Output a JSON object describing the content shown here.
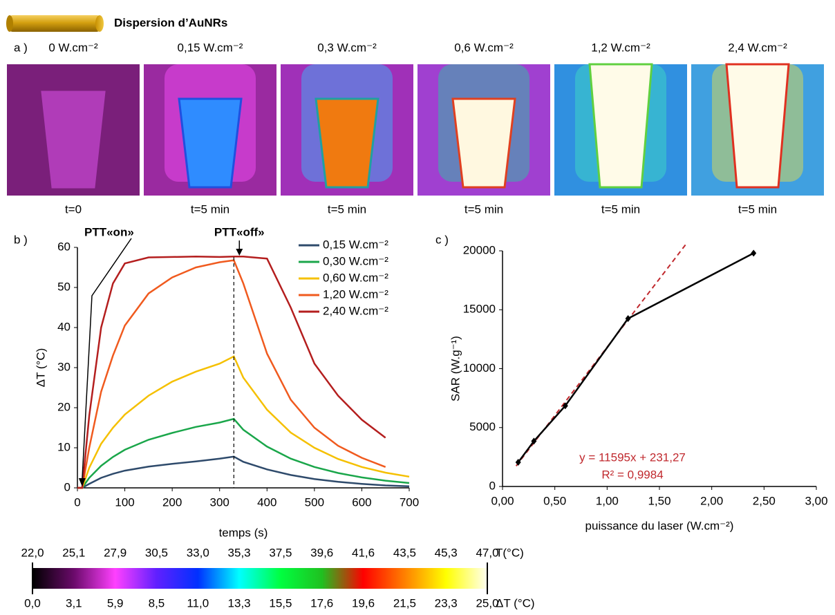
{
  "header": {
    "title": "Dispersion d’AuNRs"
  },
  "panel_a": {
    "label": "a )",
    "images": [
      {
        "power": "0 W.cm⁻²",
        "time": "t=0"
      },
      {
        "power": "0,15 W.cm⁻²",
        "time": "t=5 min"
      },
      {
        "power": "0,3 W.cm⁻²",
        "time": "t=5 min"
      },
      {
        "power": "0,6 W.cm⁻²",
        "time": "t=5 min"
      },
      {
        "power": "1,2 W.cm⁻²",
        "time": "t=5 min"
      },
      {
        "power": "2,4 W.cm⁻²",
        "time": "t=5 min"
      }
    ]
  },
  "chart_data": [
    {
      "type": "line",
      "panel_label": "b )",
      "xlabel": "temps (s)",
      "ylabel": "ΔT (°C)",
      "xlim": [
        0,
        700
      ],
      "ylim": [
        0,
        60
      ],
      "xticks": [
        0,
        100,
        200,
        300,
        400,
        500,
        600,
        700
      ],
      "yticks": [
        0,
        10,
        20,
        30,
        40,
        50,
        60
      ],
      "x": [
        0,
        10,
        25,
        50,
        75,
        100,
        150,
        200,
        250,
        300,
        330,
        350,
        400,
        450,
        500,
        550,
        600,
        650,
        700
      ],
      "series": [
        {
          "name": "0,15 W.cm⁻²",
          "color": "#2e4a6b",
          "values": [
            0,
            0,
            1,
            2.5,
            3.5,
            4.3,
            5.3,
            6,
            6.6,
            7.3,
            7.8,
            6.5,
            4.6,
            3.2,
            2.2,
            1.5,
            1,
            0.6,
            0.4
          ]
        },
        {
          "name": "0,30 W.cm⁻²",
          "color": "#1aa64a",
          "values": [
            0,
            0,
            2.5,
            5.5,
            7.7,
            9.5,
            12,
            13.7,
            15.2,
            16.3,
            17.2,
            14.5,
            10.3,
            7.3,
            5.2,
            3.7,
            2.6,
            1.8,
            1.2
          ]
        },
        {
          "name": "0,60 W.cm⁻²",
          "color": "#f5c000",
          "values": [
            0,
            0,
            5,
            11,
            15,
            18.3,
            23,
            26.5,
            29,
            31,
            32.8,
            27.5,
            19.5,
            13.8,
            10,
            7.2,
            5.2,
            3.8,
            2.8
          ]
        },
        {
          "name": "1,20 W.cm⁻²",
          "color": "#f05a1e",
          "values": [
            0,
            0,
            10,
            24,
            33,
            40.5,
            48.5,
            52.5,
            55,
            56.3,
            56.8,
            51,
            33.5,
            22,
            15,
            10.5,
            7.5,
            5.2,
            null
          ]
        },
        {
          "name": "2,40 W.cm⁻²",
          "color": "#b41e1e",
          "values": [
            0,
            0,
            18,
            40,
            51,
            56,
            57.5,
            57.6,
            57.7,
            57.6,
            57.7,
            57.7,
            57.2,
            45,
            31,
            23,
            17,
            12.5,
            null
          ]
        }
      ],
      "annotations": [
        {
          "text": "PTT«on»",
          "x": 10
        },
        {
          "text": "PTT«off»",
          "x": 330
        }
      ]
    },
    {
      "type": "scatter",
      "panel_label": "c )",
      "xlabel": "puissance du laser (W.cm⁻²)",
      "ylabel": "SAR (W.g⁻¹)",
      "xlim": [
        0,
        3
      ],
      "ylim": [
        0,
        20000
      ],
      "xticks": [
        {
          "value": 0,
          "label": "0,00"
        },
        {
          "value": 0.5,
          "label": "0,50"
        },
        {
          "value": 1,
          "label": "1,00"
        },
        {
          "value": 1.5,
          "label": "1,50"
        },
        {
          "value": 2,
          "label": "2,00"
        },
        {
          "value": 2.5,
          "label": "2,50"
        },
        {
          "value": 3,
          "label": "3,00"
        }
      ],
      "yticks": [
        0,
        5000,
        10000,
        15000,
        20000
      ],
      "x": [
        0.15,
        0.3,
        0.6,
        1.2,
        2.4
      ],
      "series": [
        {
          "color": "#000000",
          "values": [
            2050,
            3850,
            6850,
            14250,
            19800
          ]
        }
      ],
      "trendline": {
        "slope": 11595,
        "intercept": 231.27,
        "xrange": [
          0.13,
          1.75
        ],
        "color": "#c0282d",
        "label": "y = 11595x + 231,27",
        "r2_label": "R² = 0,9984"
      }
    },
    {
      "type": "colorbar",
      "title_top": "T(°C)",
      "title_bottom": "ΔT (°C)",
      "top_labels": [
        "22,0",
        "25,1",
        "27,9",
        "30,5",
        "33,0",
        "35,3",
        "37,5",
        "39,6",
        "41,6",
        "43,5",
        "45,3",
        "47,0"
      ],
      "bottom_labels": [
        "0,0",
        "3,1",
        "5,9",
        "8,5",
        "11,0",
        "13,3",
        "15,5",
        "17,6",
        "19,6",
        "21,5",
        "23,3",
        "25,0"
      ],
      "colors": [
        "#000000",
        "#6a0a6a",
        "#ff40ff",
        "#6020ff",
        "#0030ff",
        "#00ffff",
        "#00ff40",
        "#20c020",
        "#ff0000",
        "#ff8000",
        "#ffff00",
        "#fffff0"
      ]
    }
  ]
}
